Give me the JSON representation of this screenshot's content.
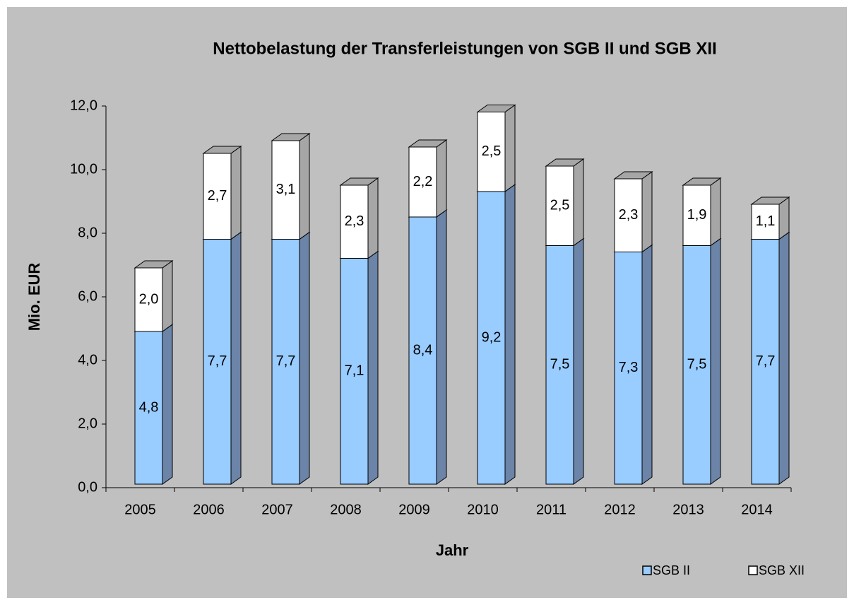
{
  "chart_data": {
    "type": "stacked_bar_3d",
    "title": "Nettobelastung der Transferleistungen von SGB II und SGB XII",
    "xlabel": "Jahr",
    "ylabel": "Mio. EUR",
    "categories": [
      "2005",
      "2006",
      "2007",
      "2008",
      "2009",
      "2010",
      "2011",
      "2012",
      "2013",
      "2014"
    ],
    "series": [
      {
        "name": "SGB II",
        "color": "#99ccff",
        "side_color": "#6b84a8",
        "values": [
          4.8,
          7.7,
          7.7,
          7.1,
          8.4,
          9.2,
          7.5,
          7.3,
          7.5,
          7.7
        ],
        "value_labels": [
          "4,8",
          "7,7",
          "7,7",
          "7,1",
          "8,4",
          "9,2",
          "7,5",
          "7,3",
          "7,5",
          "7,7"
        ]
      },
      {
        "name": "SGB XII",
        "color": "#ffffff",
        "side_color": "#a6a6a6",
        "values": [
          2.0,
          2.7,
          3.1,
          2.3,
          2.2,
          2.5,
          2.5,
          2.3,
          1.9,
          1.1
        ],
        "value_labels": [
          "2,0",
          "2,7",
          "3,1",
          "2,3",
          "2,2",
          "2,5",
          "2,5",
          "2,3",
          "1,9",
          "1,1"
        ]
      }
    ],
    "ylim": [
      0,
      12
    ],
    "yticks": [
      {
        "value": 0,
        "label": "0,0"
      },
      {
        "value": 2,
        "label": "2,0"
      },
      {
        "value": 4,
        "label": "4,0"
      },
      {
        "value": 6,
        "label": "6,0"
      },
      {
        "value": 8,
        "label": "8,0"
      },
      {
        "value": 10,
        "label": "10,0"
      },
      {
        "value": 12,
        "label": "12,0"
      }
    ],
    "legend": "bottom-right"
  }
}
